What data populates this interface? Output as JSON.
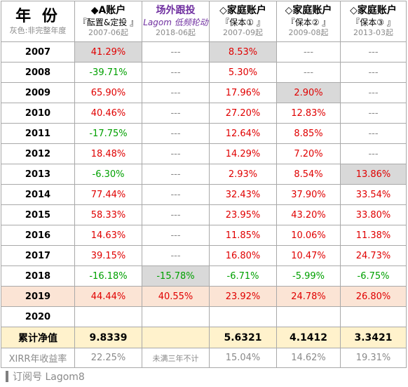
{
  "header": {
    "year_title": "年 份",
    "year_note": "灰色:非完整年度",
    "columns": [
      {
        "line1": "◆A账户",
        "line2": "『酝置&定投 』",
        "line3": "2007-06起"
      },
      {
        "line1": "场外跟投",
        "line2": "Lagom 低频轮动",
        "line3": "2018-06起"
      },
      {
        "line1": "◇家庭账户",
        "line2": "『保本① 』",
        "line3": "2007-09起"
      },
      {
        "line1": "◇家庭账户",
        "line2": "『保本② 』",
        "line3": "2009-08起"
      },
      {
        "line1": "◇家庭账户",
        "line2": "『保本③ 』",
        "line3": "2013-03起"
      }
    ]
  },
  "rows": [
    {
      "year": "2007",
      "cells": [
        "41.29%",
        "---",
        "8.53%",
        "---",
        "---"
      ]
    },
    {
      "year": "2008",
      "cells": [
        "-39.71%",
        "---",
        "5.30%",
        "---",
        "---"
      ]
    },
    {
      "year": "2009",
      "cells": [
        "65.90%",
        "---",
        "17.96%",
        "2.90%",
        "---"
      ]
    },
    {
      "year": "2010",
      "cells": [
        "40.46%",
        "---",
        "27.20%",
        "12.83%",
        "---"
      ]
    },
    {
      "year": "2011",
      "cells": [
        "-17.75%",
        "---",
        "12.64%",
        "8.85%",
        "---"
      ]
    },
    {
      "year": "2012",
      "cells": [
        "18.48%",
        "---",
        "14.29%",
        "7.20%",
        "---"
      ]
    },
    {
      "year": "2013",
      "cells": [
        "-6.30%",
        "---",
        "2.93%",
        "8.54%",
        "13.86%"
      ]
    },
    {
      "year": "2014",
      "cells": [
        "77.44%",
        "---",
        "32.43%",
        "37.90%",
        "33.54%"
      ]
    },
    {
      "year": "2015",
      "cells": [
        "58.33%",
        "---",
        "23.95%",
        "43.20%",
        "33.80%"
      ]
    },
    {
      "year": "2016",
      "cells": [
        "14.63%",
        "---",
        "11.85%",
        "10.06%",
        "11.38%"
      ]
    },
    {
      "year": "2017",
      "cells": [
        "39.15%",
        "---",
        "16.80%",
        "10.47%",
        "24.73%"
      ]
    },
    {
      "year": "2018",
      "cells": [
        "-16.18%",
        "-15.78%",
        "-6.71%",
        "-5.99%",
        "-6.75%"
      ]
    },
    {
      "year": "2019",
      "cells": [
        "44.44%",
        "40.55%",
        "23.92%",
        "24.78%",
        "26.80%"
      ]
    },
    {
      "year": "2020",
      "cells": [
        "",
        "",
        "",
        "",
        ""
      ]
    }
  ],
  "total": {
    "label": "累计净值",
    "cells": [
      "9.8339",
      "",
      "5.6321",
      "4.1412",
      "3.3421"
    ]
  },
  "xirr": {
    "label": "XIRR年收益率",
    "cells": [
      "22.25%",
      "未满三年不计",
      "15.04%",
      "14.62%",
      "19.31%"
    ]
  },
  "footer": {
    "text": "订阅号 Lagom8"
  },
  "colors": {
    "positive": "#e00000",
    "negative": "#00a000",
    "partial_year_bg": "#d9d9d9",
    "highlight_row_bg": "#fbe4d5",
    "total_row_bg": "#fff2cc"
  }
}
